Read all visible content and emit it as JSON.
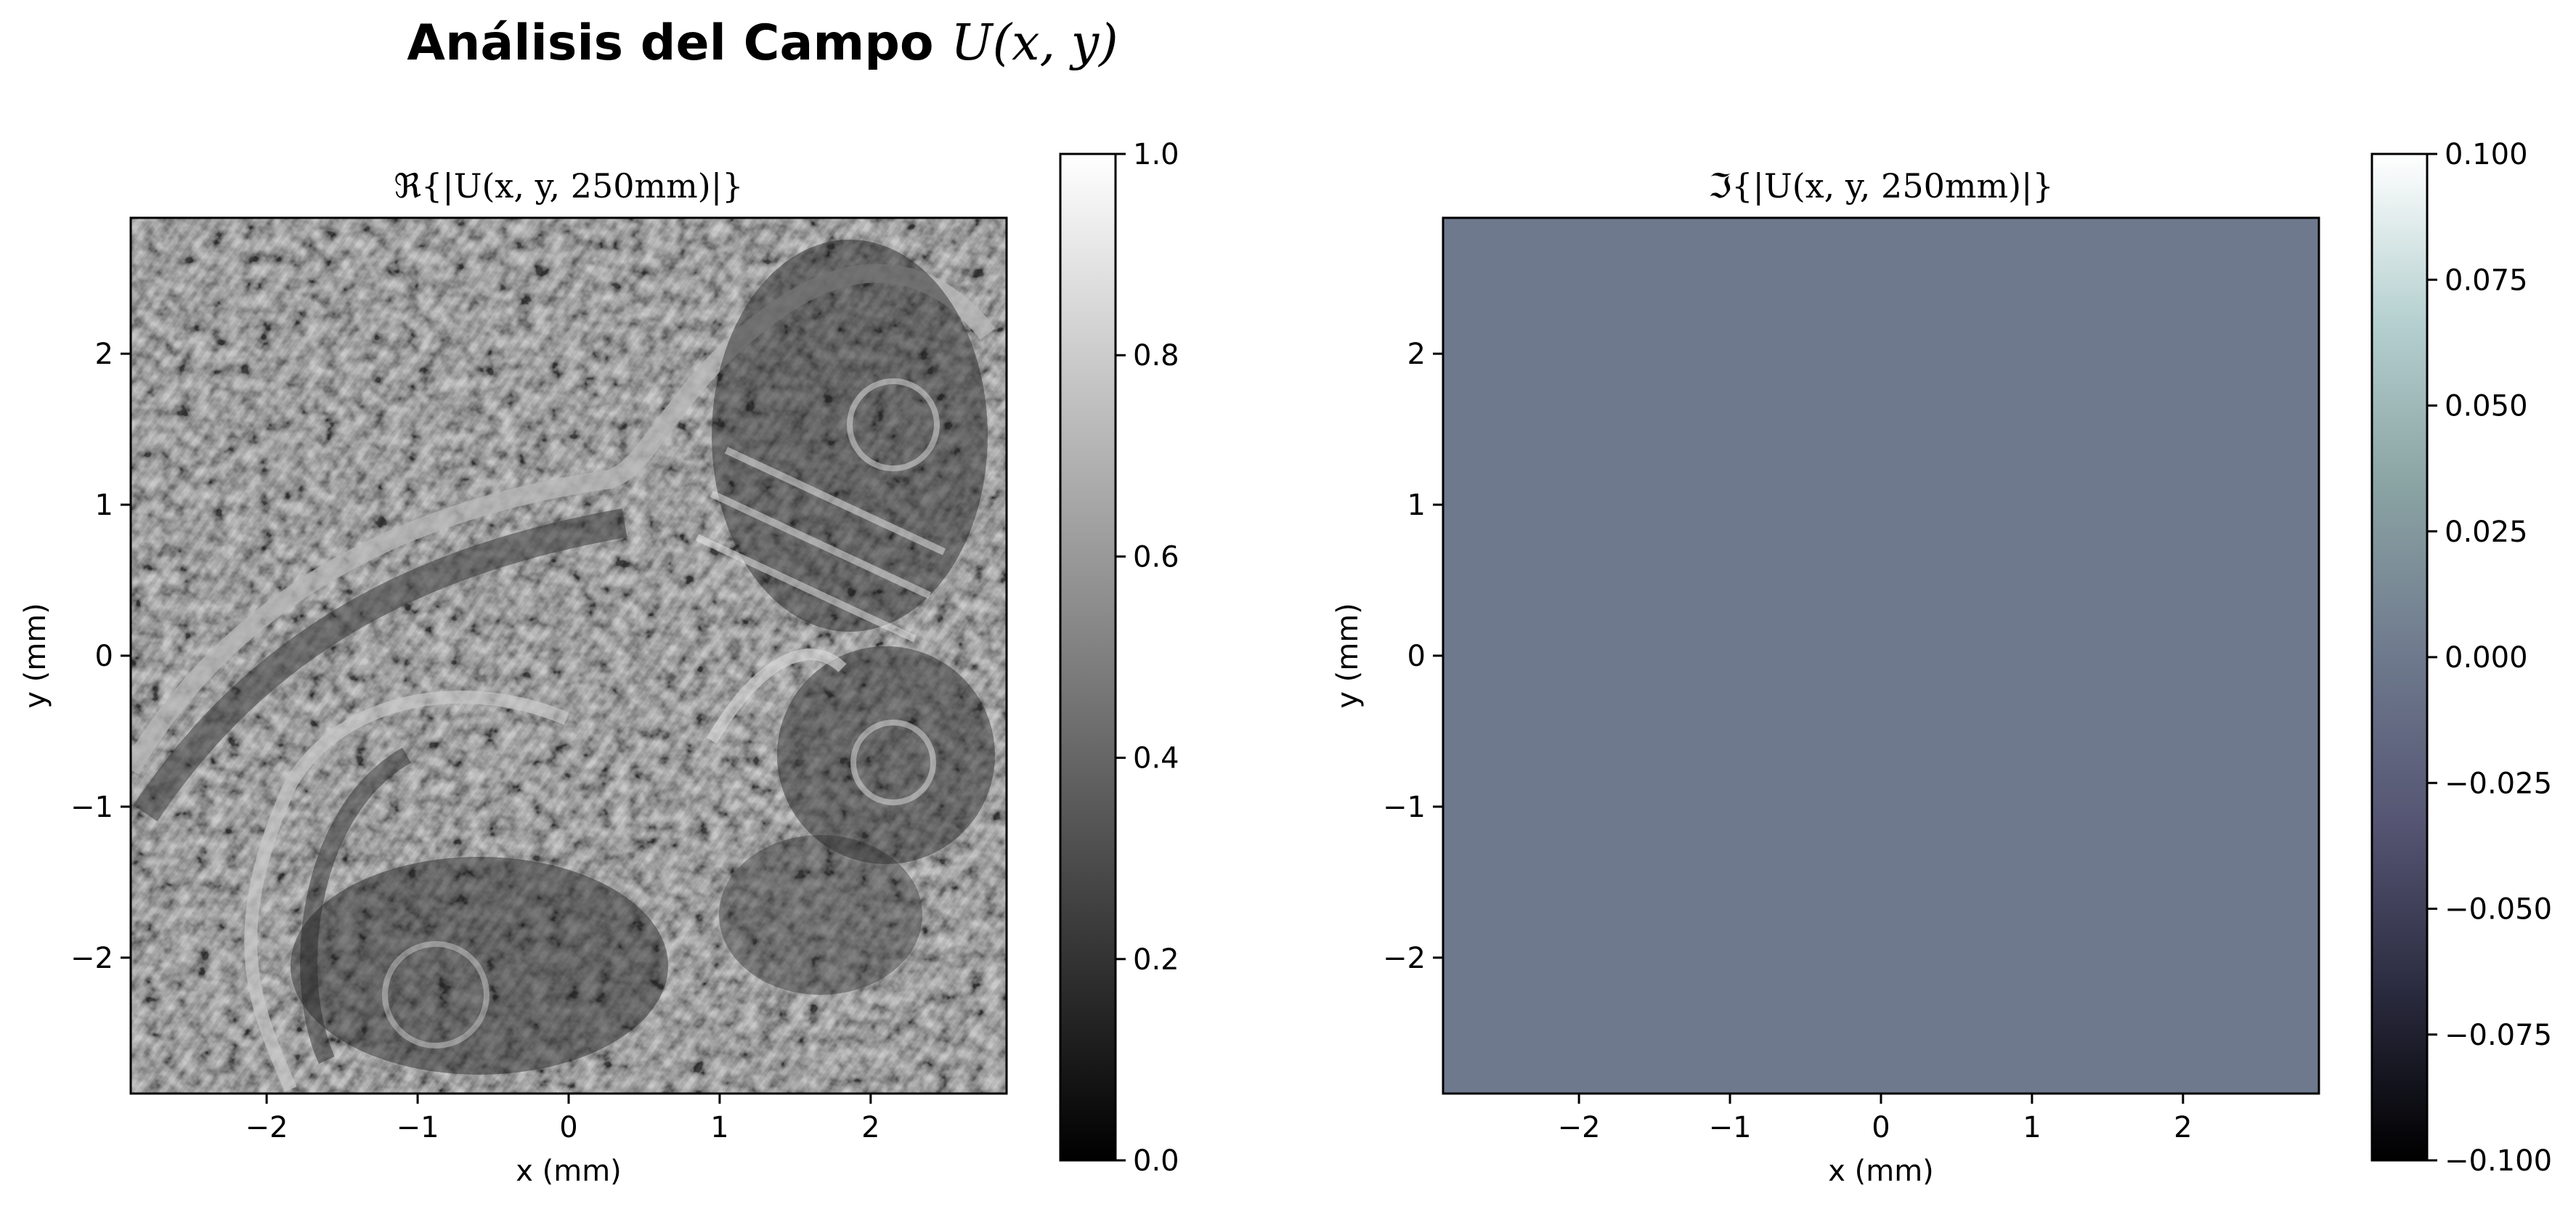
{
  "figure": {
    "title": "Análisis del Campo U(x, y)",
    "title_text": "Análisis del Campo ",
    "title_math": "U(x, y)"
  },
  "chart_data": [
    {
      "type": "heatmap",
      "title": "ℜ{|U(x, y, 250mm)|}",
      "xlabel": "x (mm)",
      "ylabel": "y (mm)",
      "xlim": [
        -2.9,
        2.9
      ],
      "ylim": [
        -2.9,
        2.9
      ],
      "xticks": [
        -2,
        -1,
        0,
        1,
        2
      ],
      "yticks": [
        -2,
        -1,
        0,
        1,
        2
      ],
      "xtick_labels": [
        "−2",
        "−1",
        "0",
        "1",
        "2"
      ],
      "ytick_labels": [
        "−2",
        "−1",
        "0",
        "1",
        "2"
      ],
      "colormap": "gray",
      "colorbar": {
        "range": [
          0.0,
          1.0
        ],
        "ticks": [
          0.0,
          0.2,
          0.4,
          0.6,
          0.8,
          1.0
        ],
        "tick_labels": [
          "0.0",
          "0.2",
          "0.4",
          "0.6",
          "0.8",
          "1.0"
        ],
        "colors": [
          "#000000",
          "#ffffff"
        ]
      },
      "field_description_value": "interference pattern of the real part of a diffracted field",
      "mean_value": 0.5
    },
    {
      "type": "heatmap",
      "title": "ℑ{|U(x, y, 250mm)|}",
      "xlabel": "x (mm)",
      "ylabel": "y (mm)",
      "xlim": [
        -2.9,
        2.9
      ],
      "ylim": [
        -2.9,
        2.9
      ],
      "xticks": [
        -2,
        -1,
        0,
        1,
        2
      ],
      "yticks": [
        -2,
        -1,
        0,
        1,
        2
      ],
      "xtick_labels": [
        "−2",
        "−1",
        "0",
        "1",
        "2"
      ],
      "ytick_labels": [
        "−2",
        "−1",
        "0",
        "1",
        "2"
      ],
      "colormap": "bone",
      "uniform_value": 0.0,
      "uniform_color": "#6e798d",
      "colorbar": {
        "range": [
          -0.1,
          0.1
        ],
        "ticks": [
          -0.1,
          -0.075,
          -0.05,
          -0.025,
          0.0,
          0.025,
          0.05,
          0.075,
          0.1
        ],
        "tick_labels": [
          "−0.100",
          "−0.075",
          "−0.050",
          "−0.025",
          "0.000",
          "0.025",
          "0.050",
          "0.075",
          "0.100"
        ],
        "colors": [
          "#000000",
          "#2b2b40",
          "#545472",
          "#6e798d",
          "#8aa3a3",
          "#b4cfcf",
          "#ffffff"
        ]
      }
    }
  ],
  "colors": {
    "background": "#ffffff",
    "axes_edge": "#000000",
    "imag_fill": "#6e798d"
  }
}
